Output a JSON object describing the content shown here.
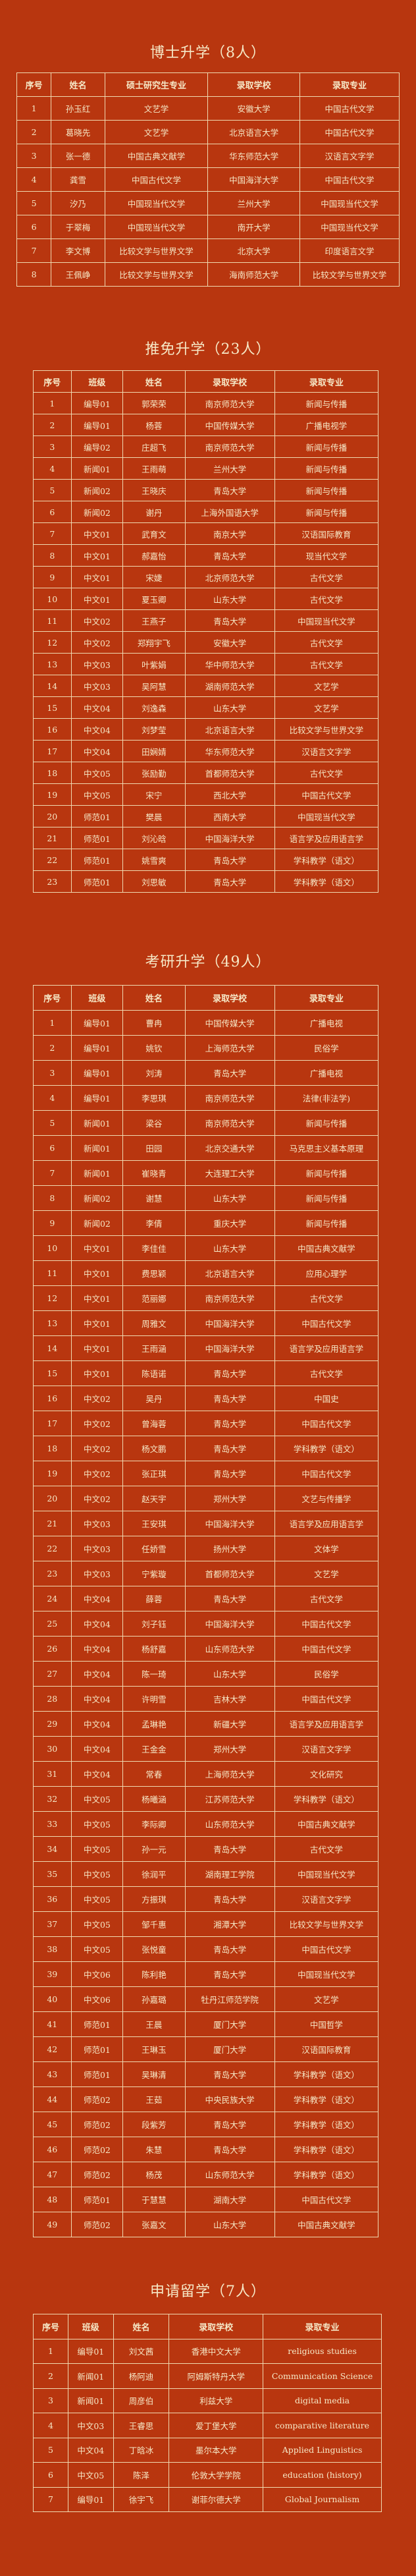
{
  "sections": [
    {
      "title": "博士升学（8人）",
      "columns": [
        "序号",
        "姓名",
        "硕士研究生专业",
        "录取学校",
        "录取专业"
      ],
      "rows": [
        [
          "1",
          "孙玉红",
          "文艺学",
          "安徽大学",
          "中国古代文学"
        ],
        [
          "2",
          "葛晓先",
          "文艺学",
          "北京语言大学",
          "中国古代文学"
        ],
        [
          "3",
          "张一德",
          "中国古典文献学",
          "华东师范大学",
          "汉语言文字学"
        ],
        [
          "4",
          "龚雪",
          "中国古代文学",
          "中国海洋大学",
          "中国古代文学"
        ],
        [
          "5",
          "汐乃",
          "中国现当代文学",
          "兰州大学",
          "中国现当代文学"
        ],
        [
          "6",
          "于翠梅",
          "中国现当代文学",
          "南开大学",
          "中国现当代文学"
        ],
        [
          "7",
          "李文博",
          "比较文学与世界文学",
          "北京大学",
          "印度语言文学"
        ],
        [
          "8",
          "王佩峥",
          "比较文学与世界文学",
          "海南师范大学",
          "比较文学与世界文学"
        ]
      ]
    },
    {
      "title": "推免升学（23人）",
      "columns": [
        "序号",
        "班级",
        "姓名",
        "录取学校",
        "录取专业"
      ],
      "rows": [
        [
          "1",
          "编导01",
          "郭荣荣",
          "南京师范大学",
          "新闻与传播"
        ],
        [
          "2",
          "编导01",
          "杨蓉",
          "中国传媒大学",
          "广播电视学"
        ],
        [
          "3",
          "编导02",
          "庄超飞",
          "南京师范大学",
          "新闻与传播"
        ],
        [
          "4",
          "新闻01",
          "王雨萌",
          "兰州大学",
          "新闻与传播"
        ],
        [
          "5",
          "新闻02",
          "王晓庆",
          "青岛大学",
          "新闻与传播"
        ],
        [
          "6",
          "新闻02",
          "谢丹",
          "上海外国语大学",
          "新闻与传播"
        ],
        [
          "7",
          "中文01",
          "武育文",
          "南京大学",
          "汉语国际教育"
        ],
        [
          "8",
          "中文01",
          "郝嘉怡",
          "青岛大学",
          "现当代文学"
        ],
        [
          "9",
          "中文01",
          "宋婕",
          "北京师范大学",
          "古代文学"
        ],
        [
          "10",
          "中文01",
          "夏玉卿",
          "山东大学",
          "古代文学"
        ],
        [
          "11",
          "中文02",
          "王燕子",
          "青岛大学",
          "中国现当代文学"
        ],
        [
          "12",
          "中文02",
          "郑翔宇飞",
          "安徽大学",
          "古代文学"
        ],
        [
          "13",
          "中文03",
          "叶紫娟",
          "华中师范大学",
          "古代文学"
        ],
        [
          "14",
          "中文03",
          "吴阿慧",
          "湖南师范大学",
          "文艺学"
        ],
        [
          "15",
          "中文04",
          "刘逸森",
          "山东大学",
          "文艺学"
        ],
        [
          "16",
          "中文04",
          "刘梦莹",
          "北京语言大学",
          "比较文学与世界文学"
        ],
        [
          "17",
          "中文04",
          "田娴婧",
          "华东师范大学",
          "汉语言文字学"
        ],
        [
          "18",
          "中文05",
          "张励勤",
          "首都师范大学",
          "古代文学"
        ],
        [
          "19",
          "中文05",
          "宋宁",
          "西北大学",
          "中国古代文学"
        ],
        [
          "20",
          "师范01",
          "樊晨",
          "西南大学",
          "中国现当代文学"
        ],
        [
          "21",
          "师范01",
          "刘沁晗",
          "中国海洋大学",
          "语言学及应用语言学"
        ],
        [
          "22",
          "师范01",
          "姚雪爽",
          "青岛大学",
          "学科教学（语文）"
        ],
        [
          "23",
          "师范01",
          "刘思敏",
          "青岛大学",
          "学科教学（语文）"
        ]
      ]
    },
    {
      "title": "考研升学（49人）",
      "columns": [
        "序号",
        "班级",
        "姓名",
        "录取学校",
        "录取专业"
      ],
      "rows": [
        [
          "1",
          "编导01",
          "曹冉",
          "中国传媒大学",
          "广播电视"
        ],
        [
          "2",
          "编导01",
          "姚钦",
          "上海师范大学",
          "民俗学"
        ],
        [
          "3",
          "编导01",
          "刘涛",
          "青岛大学",
          "广播电视"
        ],
        [
          "4",
          "编导01",
          "李思琪",
          "南京师范大学",
          "法律(非法学)"
        ],
        [
          "5",
          "新闻01",
          "梁谷",
          "南京师范大学",
          "新闻与传播"
        ],
        [
          "6",
          "新闻01",
          "田园",
          "北京交通大学",
          "马克思主义基本原理"
        ],
        [
          "7",
          "新闻01",
          "崔晓青",
          "大连理工大学",
          "新闻与传播"
        ],
        [
          "8",
          "新闻02",
          "谢慧",
          "山东大学",
          "新闻与传播"
        ],
        [
          "9",
          "新闻02",
          "李倩",
          "重庆大学",
          "新闻与传播"
        ],
        [
          "10",
          "中文01",
          "李佳佳",
          "山东大学",
          "中国古典文献学"
        ],
        [
          "11",
          "中文01",
          "费思颖",
          "北京语言大学",
          "应用心理学"
        ],
        [
          "12",
          "中文01",
          "范丽娜",
          "南京师范大学",
          "古代文学"
        ],
        [
          "13",
          "中文01",
          "周雅文",
          "中国海洋大学",
          "中国古代文学"
        ],
        [
          "14",
          "中文01",
          "王雨涵",
          "中国海洋大学",
          "语言学及应用语言学"
        ],
        [
          "15",
          "中文01",
          "陈语诺",
          "青岛大学",
          "古代文学"
        ],
        [
          "16",
          "中文02",
          "吴丹",
          "青岛大学",
          "中国史"
        ],
        [
          "17",
          "中文02",
          "曾海蓉",
          "青岛大学",
          "中国古代文学"
        ],
        [
          "18",
          "中文02",
          "杨文鹏",
          "青岛大学",
          "学科教学（语文）"
        ],
        [
          "19",
          "中文02",
          "张正琪",
          "青岛大学",
          "中国古代文学"
        ],
        [
          "20",
          "中文02",
          "赵天宇",
          "郑州大学",
          "文艺与传播学"
        ],
        [
          "21",
          "中文03",
          "王安琪",
          "中国海洋大学",
          "语言学及应用语言学"
        ],
        [
          "22",
          "中文03",
          "任娇雪",
          "扬州大学",
          "文体学"
        ],
        [
          "23",
          "中文03",
          "宁紫璇",
          "首都师范大学",
          "文艺学"
        ],
        [
          "24",
          "中文04",
          "薛蓉",
          "青岛大学",
          "古代文学"
        ],
        [
          "25",
          "中文04",
          "刘子钰",
          "中国海洋大学",
          "中国古代文学"
        ],
        [
          "26",
          "中文04",
          "杨舒嘉",
          "山东师范大学",
          "中国古代文学"
        ],
        [
          "27",
          "中文04",
          "陈一琦",
          "山东大学",
          "民俗学"
        ],
        [
          "28",
          "中文04",
          "许明雪",
          "吉林大学",
          "中国古代文学"
        ],
        [
          "29",
          "中文04",
          "孟琳艳",
          "新疆大学",
          "语言学及应用语言学"
        ],
        [
          "30",
          "中文04",
          "王金金",
          "郑州大学",
          "汉语言文字学"
        ],
        [
          "31",
          "中文04",
          "常春",
          "上海师范大学",
          "文化研究"
        ],
        [
          "32",
          "中文05",
          "杨曦涵",
          "江苏师范大学",
          "学科教学（语文）"
        ],
        [
          "33",
          "中文05",
          "李际卿",
          "山东师范大学",
          "中国古典文献学"
        ],
        [
          "34",
          "中文05",
          "孙一元",
          "青岛大学",
          "古代文学"
        ],
        [
          "35",
          "中文05",
          "徐润平",
          "湖南理工学院",
          "中国现当代文学"
        ],
        [
          "36",
          "中文05",
          "方振琪",
          "青岛大学",
          "汉语言文字学"
        ],
        [
          "37",
          "中文05",
          "邹千惠",
          "湘潭大学",
          "比较文学与世界文学"
        ],
        [
          "38",
          "中文05",
          "张悦童",
          "青岛大学",
          "中国古代文学"
        ],
        [
          "39",
          "中文06",
          "陈利艳",
          "青岛大学",
          "中国现当代文学"
        ],
        [
          "40",
          "中文06",
          "孙嘉璐",
          "牡丹江师范学院",
          "文艺学"
        ],
        [
          "41",
          "师范01",
          "王晨",
          "厦门大学",
          "中国哲学"
        ],
        [
          "42",
          "师范01",
          "王琳玉",
          "厦门大学",
          "汉语国际教育"
        ],
        [
          "43",
          "师范01",
          "吴琳清",
          "青岛大学",
          "学科教学（语文）"
        ],
        [
          "44",
          "师范02",
          "王茹",
          "中央民族大学",
          "学科教学（语文）"
        ],
        [
          "45",
          "师范02",
          "段紫芳",
          "青岛大学",
          "学科教学（语文）"
        ],
        [
          "46",
          "师范02",
          "朱慧",
          "青岛大学",
          "学科教学（语文）"
        ],
        [
          "47",
          "师范02",
          "杨茂",
          "山东师范大学",
          "学科教学（语文）"
        ],
        [
          "48",
          "师范01",
          "于慧慧",
          "湖南大学",
          "中国古代文学"
        ],
        [
          "49",
          "师范02",
          "张嘉文",
          "山东大学",
          "中国古典文献学"
        ]
      ]
    },
    {
      "title": "申请留学（7人）",
      "columns": [
        "序号",
        "班级",
        "姓名",
        "录取学校",
        "录取专业"
      ],
      "rows": [
        [
          "1",
          "编导01",
          "刘文茜",
          "香港中文大学",
          "religious studies"
        ],
        [
          "2",
          "新闻01",
          "杨阿迪",
          "阿姆斯特丹大学",
          "Communication Science"
        ],
        [
          "3",
          "新闻01",
          "周彦伯",
          "利兹大学",
          "digital media"
        ],
        [
          "4",
          "中文03",
          "王睿思",
          "爱丁堡大学",
          "comparative literature"
        ],
        [
          "5",
          "中文04",
          "丁晗冰",
          "墨尔本大学",
          "Applied Linguistics"
        ],
        [
          "6",
          "中文05",
          "陈泽",
          "伦敦大学学院",
          "education (history)"
        ],
        [
          "7",
          "编导01",
          "徐宇飞",
          "谢菲尔德大学",
          "Global Journalism"
        ]
      ]
    }
  ]
}
